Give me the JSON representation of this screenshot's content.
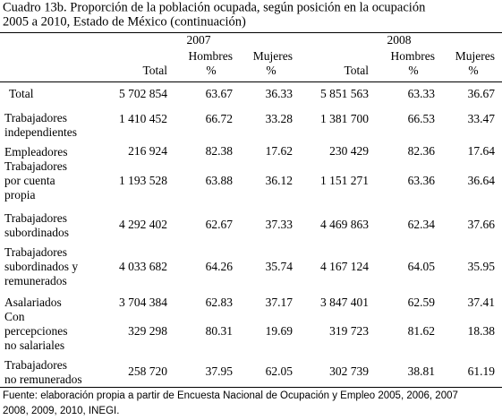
{
  "header": {
    "title_lines": [
      "Cuadro 13b. Proporción de la población ocupada, según posición en la ocupación",
      "2005 a 2010, Estado de México (continuación)"
    ]
  },
  "table": {
    "years": [
      "2007",
      "2008"
    ],
    "columns": [
      [
        "Total"
      ],
      [
        "Hombres",
        "%"
      ],
      [
        "Mujeres",
        "%"
      ],
      [
        "Total"
      ],
      [
        "Hombres",
        "%"
      ],
      [
        "Mujeres",
        "%"
      ]
    ],
    "rows": [
      {
        "label": [
          "Total"
        ],
        "cells": [
          "5 702 854",
          "63.67",
          "36.33",
          "5 851 563",
          "63.33",
          "36.67"
        ]
      },
      {
        "label": [
          "Trabajadores",
          "independientes"
        ],
        "cells": [
          "1 410 452",
          "66.72",
          "33.28",
          "1 381 700",
          "66.53",
          "33.47"
        ]
      },
      {
        "label": [
          "Empleadores"
        ],
        "cells": [
          "216 924",
          "82.38",
          "17.62",
          "230 429",
          "82.36",
          "17.64"
        ]
      },
      {
        "label": [
          "Trabajadores",
          "por cuenta",
          "propia"
        ],
        "cells": [
          "1 193 528",
          "63.88",
          "36.12",
          "1 151 271",
          "63.36",
          "36.64"
        ]
      },
      {
        "label": [
          "Trabajadores",
          "subordinados"
        ],
        "cells": [
          "4 292 402",
          "62.67",
          "37.33",
          "4 469 863",
          "62.34",
          "37.66"
        ]
      },
      {
        "label": [
          "Trabajadores",
          "subordinados y",
          "remunerados"
        ],
        "cells": [
          "4 033 682",
          "64.26",
          "35.74",
          "4 167 124",
          "64.05",
          "35.95"
        ]
      },
      {
        "label": [
          "Asalariados"
        ],
        "cells": [
          "3 704 384",
          "62.83",
          "37.17",
          "3 847 401",
          "62.59",
          "37.41"
        ]
      },
      {
        "label": [
          "Con",
          "percepciones",
          "no salariales"
        ],
        "cells": [
          "329 298",
          "80.31",
          "19.69",
          "319 723",
          "81.62",
          "18.38"
        ]
      },
      {
        "label": [
          "Trabajadores",
          "no remunerados"
        ],
        "cells": [
          "258 720",
          "37.95",
          "62.05",
          "302 739",
          "38.81",
          "61.19"
        ]
      }
    ]
  },
  "footer": {
    "lines": [
      "Fuente: elaboración propia a partir de Encuesta Nacional de Ocupación y Empleo 2005, 2006, 2007",
      "2008, 2009, 2010, INEGI."
    ]
  }
}
